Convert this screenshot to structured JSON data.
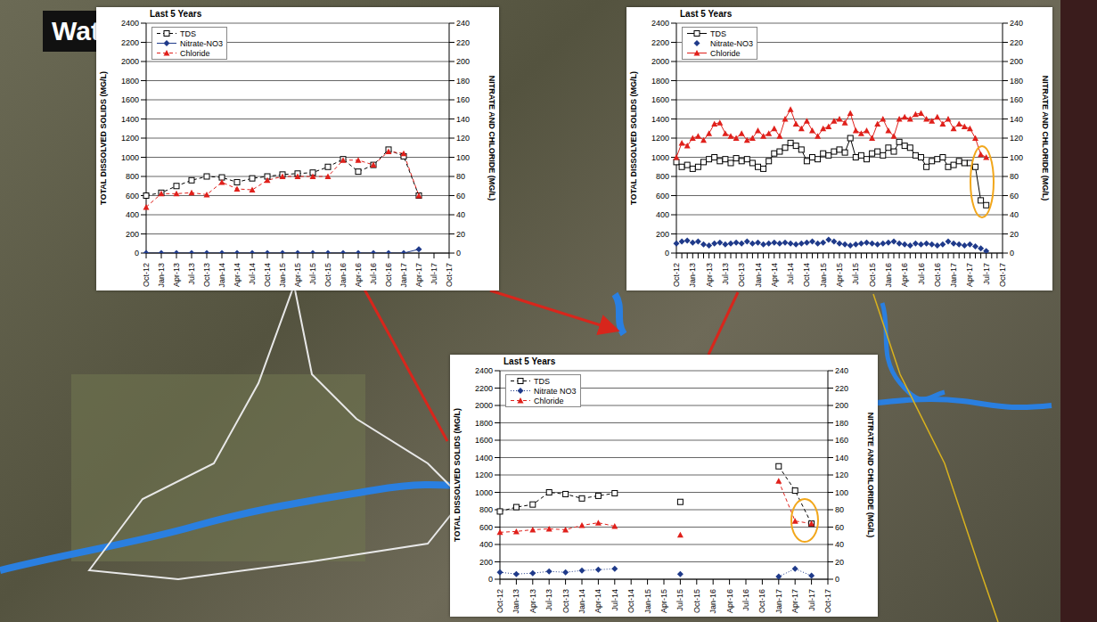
{
  "slide_title": "Wate",
  "chart_data": [
    {
      "type": "line",
      "title": "Last 5 Years",
      "y_label": "TOTAL DISSOLVED SOLIDS (MG/L)",
      "y2_label": "NITRATE AND CHLORIDE (MG/L)",
      "categories": [
        "Oct-12",
        "Jan-13",
        "Apr-13",
        "Jul-13",
        "Oct-13",
        "Jan-14",
        "Apr-14",
        "Jul-14",
        "Oct-14",
        "Jan-15",
        "Apr-15",
        "Jul-15",
        "Oct-15",
        "Jan-16",
        "Apr-16",
        "Jul-16",
        "Oct-16",
        "Jan-17",
        "Apr-17",
        "Jul-17",
        "Oct-17"
      ],
      "series": [
        {
          "name": "TDS",
          "color": "#000000",
          "marker": "square",
          "line_style": "dashed",
          "values": [
            600,
            630,
            700,
            760,
            800,
            790,
            740,
            780,
            800,
            820,
            830,
            840,
            900,
            980,
            850,
            920,
            1080,
            1010,
            600,
            null,
            null
          ]
        },
        {
          "name": "Nitrate-NO3",
          "color": "#1f3a8a",
          "marker": "diamond",
          "line_style": "solid",
          "axis": "y2",
          "values": [
            0,
            0,
            0,
            0,
            0,
            0,
            0,
            0,
            0,
            0,
            0,
            0,
            0,
            0,
            0,
            0,
            0,
            0,
            4,
            null,
            null
          ]
        },
        {
          "name": "Chloride",
          "color": "#e0201b",
          "marker": "triangle",
          "line_style": "dashed",
          "axis": "y2",
          "values": [
            48,
            62,
            62,
            63,
            61,
            74,
            67,
            66,
            76,
            80,
            80,
            80,
            80,
            97,
            97,
            92,
            106,
            104,
            60,
            null,
            null
          ]
        }
      ],
      "ylim": [
        0,
        2400
      ],
      "yticks": [
        0,
        200,
        400,
        600,
        800,
        1000,
        1200,
        1400,
        1600,
        1800,
        2000,
        2200,
        2400
      ],
      "y2lim": [
        0,
        240
      ],
      "y2ticks": [
        0,
        20,
        40,
        60,
        80,
        100,
        120,
        140,
        160,
        180,
        200,
        220,
        240
      ],
      "grid": true,
      "legend": "upper left"
    },
    {
      "type": "line",
      "title": "Last 5 Years",
      "y_label": "TOTAL DISSOLVED SOLIDS (MG/L)",
      "y2_label": "NITRATE AND CHLORIDE (MG/L)",
      "categories": [
        "Oct-12",
        null,
        null,
        "Jan-13",
        null,
        null,
        "Apr-13",
        null,
        null,
        "Jul-13",
        null,
        null,
        "Oct-13",
        null,
        null,
        "Jan-14",
        null,
        null,
        "Apr-14",
        null,
        null,
        "Jul-14",
        null,
        null,
        "Oct-14",
        null,
        null,
        "Jan-15",
        null,
        null,
        "Apr-15",
        null,
        null,
        "Jul-15",
        null,
        null,
        "Oct-15",
        null,
        null,
        "Jan-16",
        null,
        null,
        "Apr-16",
        null,
        null,
        "Jul-16",
        null,
        null,
        "Oct-16",
        null,
        null,
        "Jan-17",
        null,
        null,
        "Apr-17",
        null,
        null,
        "Jul-17",
        null,
        null,
        "Oct-17"
      ],
      "series": [
        {
          "name": "TDS",
          "color": "#000000",
          "marker": "square",
          "line_style": "solid",
          "values": [
            950,
            900,
            920,
            880,
            900,
            950,
            980,
            1000,
            960,
            980,
            940,
            990,
            960,
            980,
            940,
            900,
            880,
            960,
            1040,
            1060,
            1100,
            1150,
            1120,
            1080,
            960,
            1000,
            980,
            1040,
            1020,
            1060,
            1080,
            1050,
            1200,
            1000,
            1020,
            980,
            1040,
            1060,
            1020,
            1100,
            1060,
            1160,
            1120,
            1100,
            1020,
            1000,
            900,
            960,
            980,
            1000,
            900,
            920,
            960,
            940,
            940,
            900,
            550,
            500,
            null,
            null,
            null
          ]
        },
        {
          "name": "Nitrate-NO3",
          "color": "#1f3a8a",
          "marker": "diamond",
          "line_style": "none",
          "axis": "y2",
          "values": [
            10,
            12,
            13,
            11,
            12,
            9,
            8,
            10,
            11,
            9,
            10,
            11,
            10,
            12,
            10,
            11,
            9,
            10,
            11,
            10,
            11,
            10,
            9,
            10,
            11,
            12,
            10,
            11,
            14,
            12,
            10,
            9,
            8,
            9,
            10,
            11,
            10,
            9,
            10,
            11,
            12,
            10,
            9,
            8,
            10,
            9,
            10,
            9,
            8,
            9,
            12,
            10,
            9,
            8,
            9,
            7,
            5,
            2,
            null,
            null,
            null
          ]
        },
        {
          "name": "Chloride",
          "color": "#e0201b",
          "marker": "triangle",
          "line_style": "solid",
          "axis": "y2",
          "values": [
            100,
            115,
            112,
            120,
            122,
            118,
            125,
            135,
            136,
            125,
            122,
            120,
            125,
            118,
            120,
            128,
            122,
            125,
            130,
            122,
            140,
            150,
            135,
            130,
            138,
            128,
            122,
            130,
            132,
            138,
            140,
            136,
            146,
            128,
            125,
            128,
            120,
            135,
            140,
            128,
            122,
            140,
            142,
            140,
            145,
            146,
            140,
            138,
            142,
            135,
            140,
            130,
            135,
            132,
            130,
            120,
            103,
            100,
            null,
            null,
            null
          ]
        }
      ],
      "ylim": [
        0,
        2400
      ],
      "yticks": [
        0,
        200,
        400,
        600,
        800,
        1000,
        1200,
        1400,
        1600,
        1800,
        2000,
        2200,
        2400
      ],
      "y2lim": [
        0,
        240
      ],
      "y2ticks": [
        0,
        20,
        40,
        60,
        80,
        100,
        120,
        140,
        160,
        180,
        200,
        220,
        240
      ],
      "grid": true,
      "legend": "upper left"
    },
    {
      "type": "line",
      "title": "Last 5 Years",
      "y_label": "TOTAL DISSOLVED SOLIDS (MG/L)",
      "y2_label": "NITRATE AND CHLORIDE (MG/L)",
      "categories": [
        "Oct-12",
        "Jan-13",
        "Apr-13",
        "Jul-13",
        "Oct-13",
        "Jan-14",
        "Apr-14",
        "Jul-14",
        "Oct-14",
        "Jan-15",
        "Apr-15",
        "Jul-15",
        "Oct-15",
        "Jan-16",
        "Apr-16",
        "Jul-16",
        "Oct-16",
        "Jan-17",
        "Apr-17",
        "Jul-17",
        "Oct-17"
      ],
      "series": [
        {
          "name": "TDS",
          "color": "#000000",
          "marker": "square",
          "line_style": "dashed",
          "values": [
            780,
            830,
            860,
            1000,
            980,
            930,
            960,
            990,
            null,
            null,
            null,
            890,
            null,
            null,
            null,
            null,
            null,
            1300,
            1020,
            640,
            null
          ]
        },
        {
          "name": "Nitrate NO3",
          "color": "#1f3a8a",
          "marker": "diamond",
          "line_style": "dotted",
          "axis": "y2",
          "values": [
            8,
            6,
            7,
            9,
            8,
            10,
            11,
            12,
            null,
            null,
            null,
            6,
            null,
            null,
            null,
            null,
            null,
            3,
            12,
            4,
            null
          ]
        },
        {
          "name": "Chloride",
          "color": "#e0201b",
          "marker": "triangle",
          "line_style": "dashed",
          "axis": "y2",
          "values": [
            54,
            55,
            57,
            58,
            57,
            62,
            65,
            61,
            null,
            null,
            null,
            51,
            null,
            null,
            null,
            null,
            null,
            113,
            67,
            64,
            null
          ]
        }
      ],
      "ylim": [
        0,
        2400
      ],
      "yticks": [
        0,
        200,
        400,
        600,
        800,
        1000,
        1200,
        1400,
        1600,
        1800,
        2000,
        2200,
        2400
      ],
      "y2lim": [
        0,
        240
      ],
      "y2ticks": [
        0,
        20,
        40,
        60,
        80,
        100,
        120,
        140,
        160,
        180,
        200,
        220,
        240
      ],
      "grid": true,
      "legend": "upper left"
    }
  ]
}
